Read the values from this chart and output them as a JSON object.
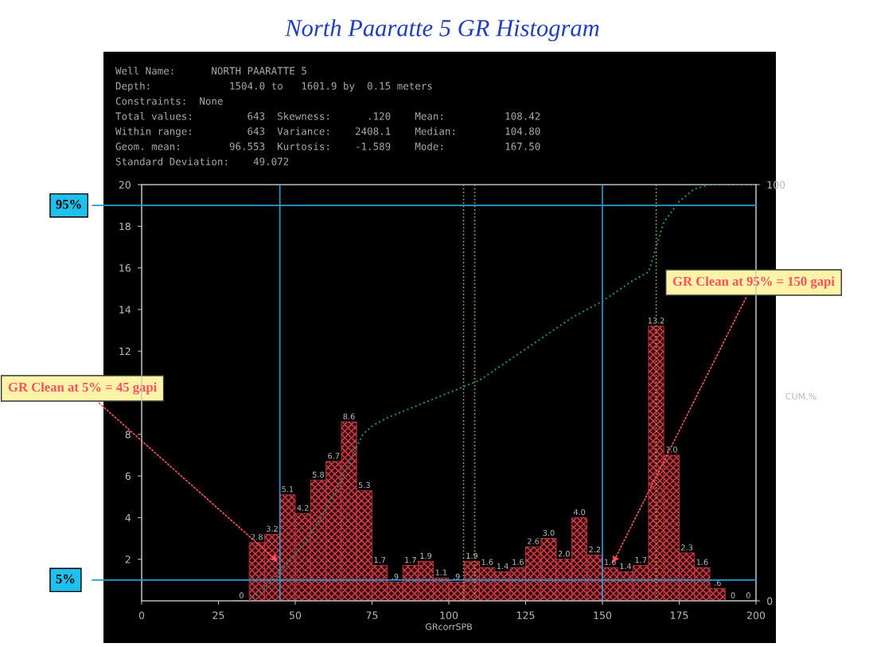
{
  "chart_data": {
    "type": "histogram",
    "title": "North Paaratte 5 GR Histogram",
    "xlabel": "GRcorrSPB",
    "y2label": "CUM.%",
    "bins": [
      30,
      35,
      40,
      45,
      50,
      55,
      60,
      65,
      70,
      75,
      80,
      85,
      90,
      95,
      100,
      105,
      110,
      115,
      120,
      125,
      130,
      135,
      140,
      145,
      150,
      155,
      160,
      165,
      170,
      175,
      180,
      185,
      190,
      195,
      200
    ],
    "series": [
      {
        "color": "#d0404a",
        "values": [
          0,
          2.8,
          3.2,
          5.1,
          4.2,
          5.8,
          6.7,
          8.6,
          5.3,
          1.7,
          0.9,
          1.7,
          1.9,
          1.1,
          0.9,
          1.9,
          1.6,
          1.4,
          1.6,
          2.6,
          3.0,
          2.0,
          4.0,
          2.2,
          1.6,
          1.4,
          1.7,
          13.2,
          7.0,
          2.3,
          1.6,
          0.6,
          0,
          0
        ],
        "value_labels": [
          "0",
          "2.8",
          "3.2",
          "5.1",
          "4.2",
          "5.8",
          "6.7",
          "8.6",
          "5.3",
          "1.7",
          ".9",
          "1.7",
          "1.9",
          "1.1",
          ".9",
          "1.9",
          "1.6",
          "1.4",
          "1.6",
          "2.6",
          "3.0",
          "2.0",
          "4.0",
          "2.2",
          "1.6",
          "1.4",
          "1.7",
          "13.2",
          "7.0",
          "2.3",
          "1.6",
          ".6",
          "0",
          "0"
        ]
      },
      {
        "type": "line",
        "axis": "y2",
        "color": "#1a8a6a",
        "line_style": "dotted",
        "x": [
          35,
          40,
          45,
          50,
          55,
          60,
          65,
          70,
          72,
          75,
          80,
          90,
          100,
          110,
          120,
          130,
          140,
          150,
          160,
          165,
          170,
          175,
          180,
          185,
          200
        ],
        "values": [
          0,
          3,
          7,
          11,
          16,
          22,
          29,
          37,
          40,
          42,
          44,
          47,
          50,
          53,
          58,
          63,
          68,
          72,
          77,
          79,
          91,
          96,
          99,
          100,
          100
        ]
      }
    ],
    "xlim": [
      0,
      200
    ],
    "xticks": [
      0,
      25,
      50,
      75,
      100,
      125,
      150,
      175,
      200
    ],
    "ylim": [
      0,
      20
    ],
    "yticks": [
      2,
      4,
      6,
      8,
      12,
      14,
      16,
      18,
      20
    ],
    "y2lim": [
      0,
      100
    ],
    "y2ticks": [
      0,
      100
    ],
    "ref_lines": [
      {
        "axis": "x",
        "value": 45,
        "color": "#2a9ad0",
        "line_style": "solid"
      },
      {
        "axis": "x",
        "value": 150,
        "color": "#2a9ad0",
        "line_style": "solid"
      },
      {
        "axis": "x",
        "value": 104.8,
        "color": "#b0a030",
        "line_style": "dotted"
      },
      {
        "axis": "x",
        "value": 108.42,
        "color": "#b0a030",
        "line_style": "dotted"
      },
      {
        "axis": "x",
        "value": 167.5,
        "color": "#b0a030",
        "line_style": "dotted"
      },
      {
        "axis": "y2",
        "value": 95,
        "label": "95%",
        "color": "#2a9ad0",
        "line_style": "solid"
      },
      {
        "axis": "y2",
        "value": 5,
        "label": "5%",
        "color": "#2a9ad0",
        "line_style": "solid"
      }
    ],
    "annotations": [
      "Well Name:      NORTH PAARATTE 5",
      "Depth:             1504.0 to   1601.9 by  0.15 meters",
      "Constraints:  None",
      "Total values:         643  Skewness:      .120    Mean:          108.42",
      "Within range:         643  Variance:    2408.1    Median:        104.80",
      "Geom. mean:        96.553  Kurtosis:    -1.589    Mode:          167.50",
      "Standard Deviation:    49.072",
      {
        "text": "GR Clean at 5% = 45 gapi",
        "x": 45,
        "y": 1.8
      },
      {
        "text": "GR Clean at 95% = 150 gapi",
        "x": 153,
        "y": 1.7
      }
    ],
    "grid": false,
    "legend": false
  }
}
